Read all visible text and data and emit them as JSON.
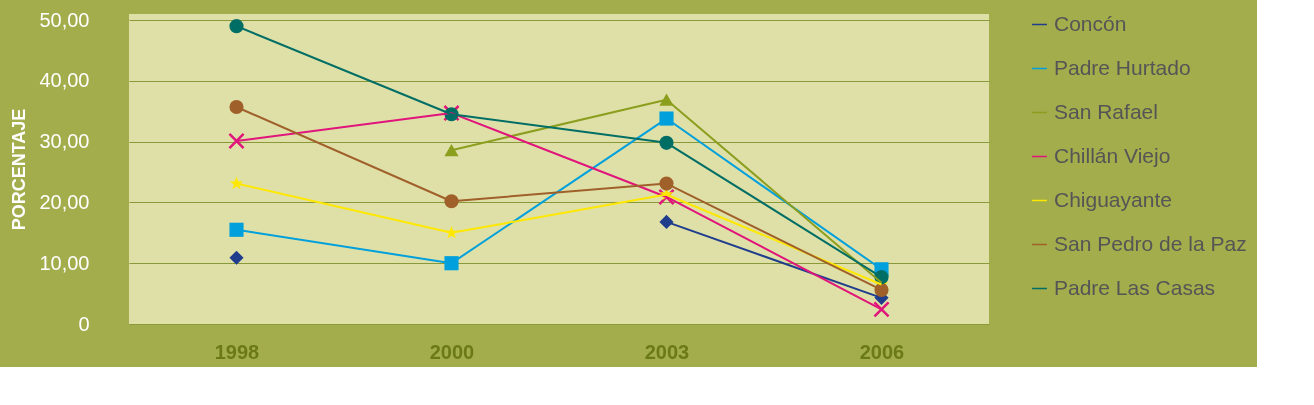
{
  "chart_data": {
    "type": "line",
    "ylabel": "PORCENTAJE",
    "categories": [
      "1998",
      "2000",
      "2003",
      "2006"
    ],
    "ylim": [
      0,
      51
    ],
    "yticks": [
      {
        "value": 0,
        "label": "0"
      },
      {
        "value": 10,
        "label": "10,00"
      },
      {
        "value": 20,
        "label": "20,00"
      },
      {
        "value": 30,
        "label": "30,00"
      },
      {
        "value": 40,
        "label": "40,00"
      },
      {
        "value": 50,
        "label": "50,00"
      }
    ],
    "grid": "y",
    "legend": "right",
    "series": [
      {
        "name": "Concón",
        "color": "#1f3d8c",
        "marker": "diamond",
        "values": [
          10.9,
          null,
          16.8,
          4.3
        ]
      },
      {
        "name": "Padre Hurtado",
        "color": "#00a0dc",
        "marker": "square",
        "values": [
          15.5,
          10.0,
          33.8,
          9.0
        ]
      },
      {
        "name": "San Rafael",
        "color": "#8c9e1e",
        "marker": "triangle",
        "values": [
          null,
          28.6,
          36.9,
          6.8
        ]
      },
      {
        "name": "Chillán Viejo",
        "color": "#e0147a",
        "marker": "cross",
        "values": [
          30.1,
          34.7,
          20.9,
          2.4
        ]
      },
      {
        "name": "Chiguayante",
        "color": "#ffe800",
        "marker": "star",
        "values": [
          23.1,
          15.0,
          21.3,
          6.5
        ]
      },
      {
        "name": "San Pedro de la Paz",
        "color": "#a0602a",
        "marker": "circle",
        "values": [
          35.7,
          20.2,
          23.1,
          5.6
        ]
      },
      {
        "name": "Padre Las Casas",
        "color": "#006e64",
        "marker": "circle",
        "values": [
          49.0,
          34.5,
          29.8,
          7.7
        ]
      }
    ]
  }
}
